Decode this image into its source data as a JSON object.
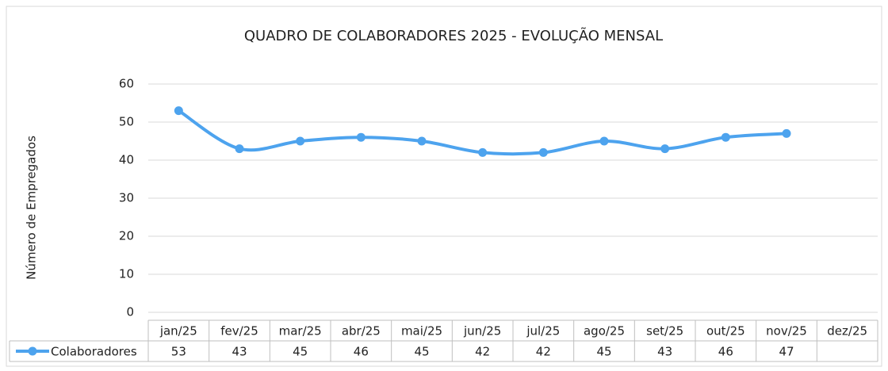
{
  "chart_data": {
    "type": "line",
    "title": "QUADRO DE COLABORADORES 2025 - EVOLUÇÃO MENSAL",
    "y_label": "Número de Empregados",
    "categories": [
      "jan/25",
      "fev/25",
      "mar/25",
      "abr/25",
      "mai/25",
      "jun/25",
      "jul/25",
      "ago/25",
      "set/25",
      "out/25",
      "nov/25",
      "dez/25"
    ],
    "series": [
      {
        "name": "Colaboradores",
        "color": "#4da3ee",
        "values": [
          53,
          43,
          45,
          46,
          45,
          42,
          42,
          45,
          43,
          46,
          47,
          null
        ]
      }
    ],
    "ylim": [
      0,
      60
    ],
    "yticks": [
      0,
      10,
      20,
      30,
      40,
      50,
      60
    ],
    "grid": true,
    "smooth": true,
    "data_table": true
  }
}
